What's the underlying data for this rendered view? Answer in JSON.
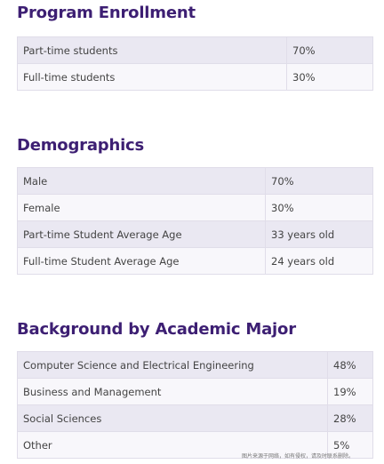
{
  "sections": [
    {
      "title": "Program Enrollment",
      "rows": [
        {
          "label": "Part-time students",
          "value": "70%"
        },
        {
          "label": "Full-time students",
          "value": "30%"
        }
      ]
    },
    {
      "title": "Demographics",
      "rows": [
        {
          "label": "Male",
          "value": "70%"
        },
        {
          "label": "Female",
          "value": "30%"
        },
        {
          "label": "Part-time Student Average Age",
          "value": "33 years old"
        },
        {
          "label": "Full-time Student Average Age",
          "value": "24 years old"
        }
      ]
    },
    {
      "title": "Background by Academic Major",
      "rows": [
        {
          "label": "Computer Science and Electrical Engineering",
          "value": "48%"
        },
        {
          "label": "Business and Management",
          "value": "19%"
        },
        {
          "label": "Social Sciences",
          "value": "28%"
        },
        {
          "label": "Other",
          "value": "5%"
        }
      ]
    }
  ],
  "watermark": "图片来源于网络，如有侵权，请及时联系删除。"
}
